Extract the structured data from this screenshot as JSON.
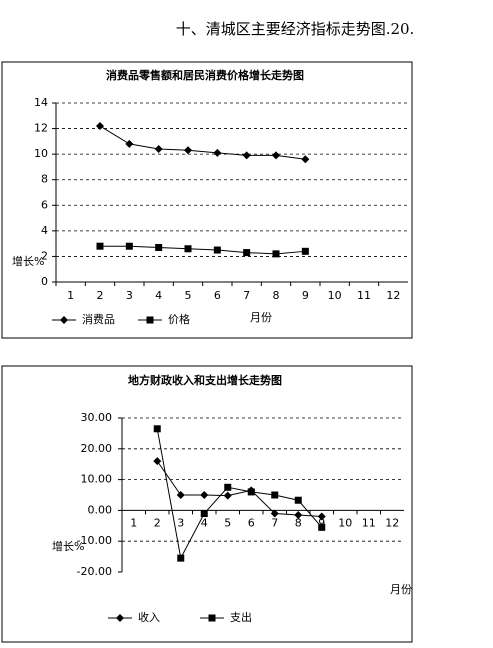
{
  "title": "十、清城区主要经济指标走势图.20.",
  "chart_data": [
    {
      "type": "line",
      "title": "消费品零售额和居民消费价格增长走势图",
      "categories": [
        "1",
        "2",
        "3",
        "4",
        "5",
        "6",
        "7",
        "8",
        "9",
        "10",
        "11",
        "12"
      ],
      "series": [
        {
          "name": "消费品",
          "color": "#000000",
          "marker": "diamond",
          "values": [
            null,
            12.2,
            10.8,
            10.4,
            10.3,
            10.1,
            9.9,
            9.9,
            9.6,
            null,
            null,
            null
          ]
        },
        {
          "name": "价格",
          "color": "#000000",
          "marker": "square",
          "values": [
            null,
            2.8,
            2.8,
            2.7,
            2.6,
            2.5,
            2.3,
            2.2,
            2.4,
            null,
            null,
            null
          ]
        }
      ],
      "ylim": [
        0,
        14
      ],
      "yticks": [
        0,
        2,
        4,
        6,
        8,
        10,
        12,
        14
      ],
      "y_label": "增长%",
      "x_label": "月份",
      "grid": true,
      "legend": "bottom"
    },
    {
      "type": "line",
      "title": "地方财政收入和支出增长走势图",
      "categories": [
        "1",
        "2",
        "3",
        "4",
        "5",
        "6",
        "7",
        "8",
        "9",
        "10",
        "11",
        "12"
      ],
      "series": [
        {
          "name": "收入",
          "color": "#000000",
          "marker": "diamond",
          "values": [
            null,
            16,
            5,
            5,
            4.8,
            6.5,
            -1,
            -1.5,
            -2,
            null,
            null,
            null
          ]
        },
        {
          "name": "支出",
          "color": "#000000",
          "marker": "square",
          "values": [
            null,
            26.5,
            -15.5,
            -1,
            7.5,
            6,
            5,
            3.3,
            -5.5,
            null,
            null,
            null
          ]
        }
      ],
      "ylim": [
        -20,
        30
      ],
      "yticks": [
        {
          "value": -20,
          "label": "-20.00"
        },
        {
          "value": -10,
          "label": "-10.00"
        },
        {
          "value": 0,
          "label": "0.00"
        },
        {
          "value": 10,
          "label": "10.00"
        },
        {
          "value": 20,
          "label": "20.00"
        },
        {
          "value": 30,
          "label": "30.00"
        }
      ],
      "y_label": "增长%",
      "x_label": "月份",
      "grid": true,
      "legend": "bottom"
    }
  ]
}
